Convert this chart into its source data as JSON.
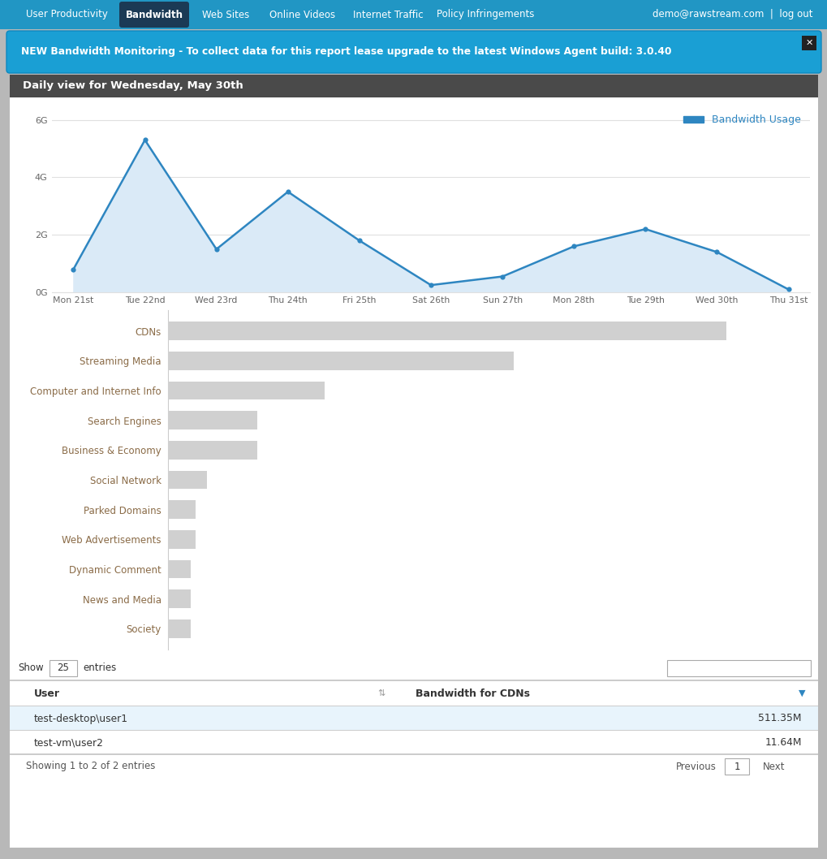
{
  "nav_bg": "#2196c4",
  "nav_items": [
    "User Productivity",
    "Bandwidth",
    "Web Sites",
    "Online Videos",
    "Internet Traffic",
    "Policy Infringements"
  ],
  "nav_active": "Bandwidth",
  "nav_right": "demo@rawstream.com  |  log out",
  "banner_text": "NEW Bandwidth Monitoring - To collect data for this report lease upgrade to the latest Windows Agent build: 3.0.40",
  "banner_bg": "#1a9fd4",
  "chart_title": "Daily view for Wednesday, May 30th",
  "chart_title_bg": "#4a4a4a",
  "line_x": [
    "Mon 21st",
    "Tue 22nd",
    "Wed 23rd",
    "Thu 24th",
    "Fri 25th",
    "Sat 26th",
    "Sun 27th",
    "Mon 28th",
    "Tue 29th",
    "Wed 30th",
    "Thu 31st"
  ],
  "line_y": [
    0.8,
    5.3,
    1.5,
    3.5,
    1.8,
    0.25,
    0.55,
    1.6,
    2.2,
    1.4,
    0.1
  ],
  "line_color": "#2e86c1",
  "fill_color": "#daeaf7",
  "ylim": [
    0,
    6.5
  ],
  "yticks": [
    0,
    2,
    4,
    6
  ],
  "ytick_labels": [
    "0G",
    "2G",
    "4G",
    "6G"
  ],
  "legend_label": "Bandwidth Usage",
  "legend_color": "#2e86c1",
  "bar_categories": [
    "CDNs",
    "Streaming Media",
    "Computer and Internet Info",
    "Search Engines",
    "Business & Economy",
    "Social Network",
    "Parked Domains",
    "Web Advertisements",
    "Dynamic Comment",
    "News and Media",
    "Society"
  ],
  "bar_values": [
    100,
    62,
    28,
    16,
    16,
    7,
    5,
    5,
    4,
    4,
    4
  ],
  "bar_color": "#d0d0d0",
  "bar_label_color": "#8a6b47",
  "table_header_user": "User",
  "table_header_bw": "Bandwidth for CDNs",
  "table_rows": [
    [
      "test-desktop\\user1",
      "511.35M"
    ],
    [
      "test-vm\\user2",
      "11.64M"
    ]
  ],
  "table_row0_bg": "#e8f4fc",
  "table_row1_bg": "#ffffff",
  "show_label": "Show",
  "show_value": "25",
  "entries_label": "entries",
  "showing_text": "Showing 1 to 2 of 2 entries",
  "prev_text": "Previous",
  "next_text": "Next",
  "page_num": "1",
  "outer_bg": "#b8b8b8",
  "panel_bg": "#ffffff",
  "separator_color": "#cccccc",
  "grid_color": "#e0e0e0"
}
